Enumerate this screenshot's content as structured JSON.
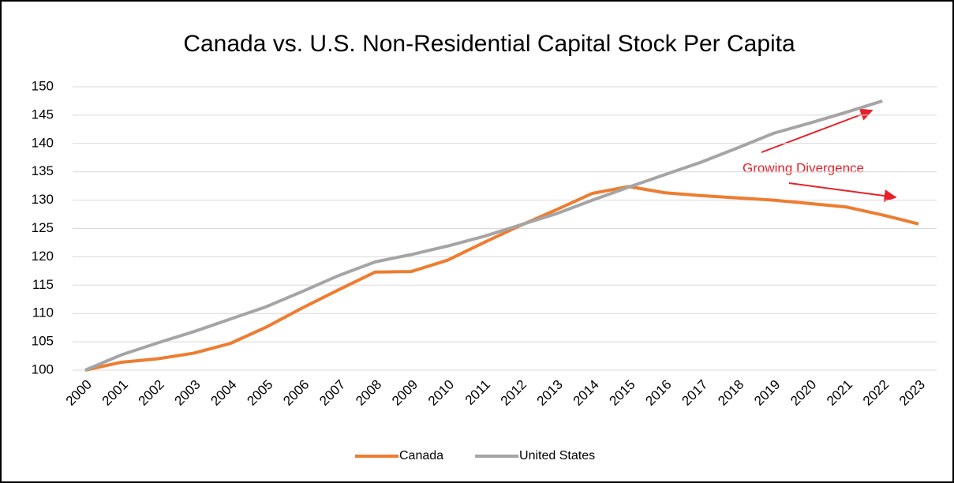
{
  "chart_data": {
    "type": "line",
    "title": "Canada vs. U.S. Non-Residential Capital Stock Per Capita",
    "categories": [
      "2000",
      "2001",
      "2002",
      "2003",
      "2004",
      "2005",
      "2006",
      "2007",
      "2008",
      "2009",
      "2010",
      "2011",
      "2012",
      "2013",
      "2014",
      "2015",
      "2016",
      "2017",
      "2018",
      "2019",
      "2020",
      "2021",
      "2022",
      "2023"
    ],
    "series": [
      {
        "name": "Canada",
        "color": "#ed7d31",
        "values": [
          100,
          101.4,
          102,
          103,
          104.7,
          107.6,
          111,
          114.2,
          117.3,
          117.4,
          119.4,
          122.5,
          125.5,
          128.3,
          131.2,
          132.4,
          131.3,
          130.8,
          130.4,
          130,
          129.4,
          128.8,
          127.4,
          125.8
        ]
      },
      {
        "name": "United States",
        "color": "#a5a5a5",
        "values": [
          100,
          102.7,
          104.8,
          106.8,
          109,
          111.2,
          113.9,
          116.7,
          119.1,
          120.4,
          121.9,
          123.6,
          125.6,
          127.6,
          130,
          132.3,
          134.5,
          136.7,
          139.2,
          141.8,
          143.6,
          145.5,
          147.5,
          null
        ]
      }
    ],
    "ylim": [
      100,
      150
    ],
    "yticks": [
      100,
      105,
      110,
      115,
      120,
      125,
      130,
      135,
      140,
      145,
      150
    ],
    "grid": true,
    "legend": "bottom",
    "annotation": "Growing Divergence"
  }
}
